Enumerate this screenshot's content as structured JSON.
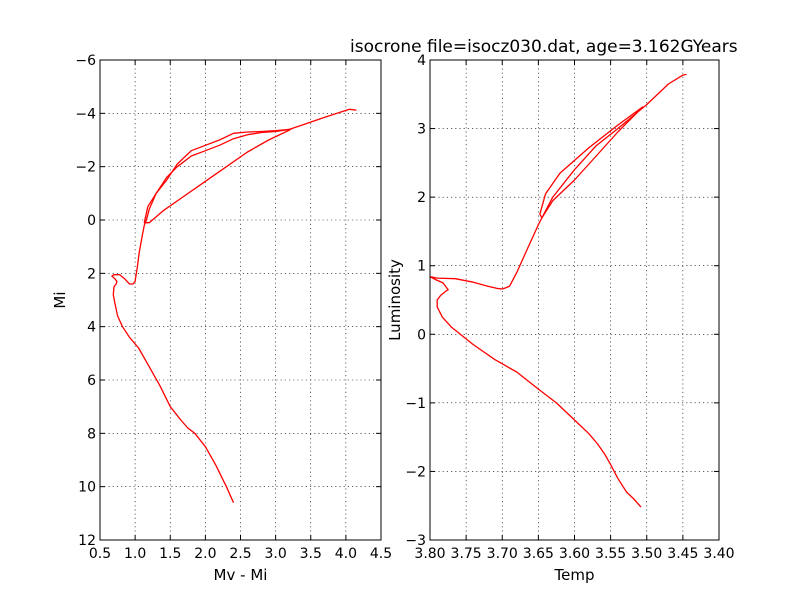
{
  "title": "isocrone file=isocz030.dat, age=3.162GYears",
  "colors": {
    "curve": "#ff0000"
  },
  "chart_data": [
    {
      "type": "line",
      "xlabel": "Mv - Mi",
      "ylabel": "Mi",
      "xlim": [
        0.5,
        4.5
      ],
      "ylim": [
        12,
        -6
      ],
      "y_inverted": true,
      "grid": true,
      "xticks": [
        0.5,
        1.0,
        1.5,
        2.0,
        2.5,
        3.0,
        3.5,
        4.0,
        4.5
      ],
      "xtick_labels": [
        "0.5",
        "1.0",
        "1.5",
        "2.0",
        "2.5",
        "3.0",
        "3.5",
        "4.0",
        "4.5"
      ],
      "yticks": [
        -6,
        -4,
        -2,
        0,
        2,
        4,
        6,
        8,
        10,
        12
      ],
      "ytick_labels": [
        "−6",
        "−4",
        "−2",
        "0",
        "2",
        "4",
        "6",
        "8",
        "10",
        "12"
      ],
      "series": [
        {
          "x": [
            2.4,
            2.3,
            2.15,
            2.0,
            1.85,
            1.75,
            1.65,
            1.5,
            1.35,
            1.2,
            1.05,
            0.92,
            0.82,
            0.75,
            0.71,
            0.69,
            0.7,
            0.73,
            0.74,
            0.71,
            0.67,
            0.7,
            0.78,
            0.85,
            0.92,
            0.97,
            1.0,
            1.03,
            1.06,
            1.1,
            1.13,
            1.16,
            1.2,
            1.3,
            1.45,
            1.6,
            1.8,
            2.0,
            2.2,
            2.4,
            2.6,
            2.8,
            3.0,
            3.2,
            3.7,
            4.05,
            4.15
          ],
          "y": [
            10.6,
            10.0,
            9.2,
            8.5,
            8.0,
            7.8,
            7.5,
            7.0,
            6.2,
            5.5,
            4.8,
            4.4,
            4.0,
            3.6,
            3.1,
            2.8,
            2.5,
            2.4,
            2.3,
            2.2,
            2.1,
            2.05,
            2.05,
            2.2,
            2.4,
            2.4,
            2.3,
            1.8,
            1.2,
            0.6,
            0.2,
            0.0,
            -0.4,
            -1.0,
            -1.6,
            -2.0,
            -2.4,
            -2.6,
            -2.8,
            -3.05,
            -3.2,
            -3.28,
            -3.32,
            -3.4,
            -3.85,
            -4.15,
            -4.12
          ]
        },
        {
          "x": [
            3.22,
            3.0,
            2.8,
            2.6,
            2.4,
            2.2,
            2.0,
            1.8,
            1.6,
            1.45,
            1.3,
            1.18,
            1.13,
            1.2,
            1.4,
            1.7,
            2.0,
            2.3,
            2.6,
            2.9,
            3.22
          ],
          "y": [
            -3.4,
            -3.35,
            -3.32,
            -3.3,
            -3.25,
            -3.0,
            -2.8,
            -2.6,
            -2.1,
            -1.5,
            -1.0,
            -0.5,
            0.1,
            0.1,
            -0.35,
            -0.9,
            -1.45,
            -2.0,
            -2.55,
            -3.0,
            -3.4
          ]
        }
      ]
    },
    {
      "type": "line",
      "xlabel": "Temp",
      "ylabel": "Luminosity",
      "xlim": [
        3.8,
        3.4
      ],
      "ylim": [
        -3,
        4
      ],
      "x_inverted": true,
      "grid": true,
      "xticks": [
        3.8,
        3.75,
        3.7,
        3.65,
        3.6,
        3.55,
        3.5,
        3.45,
        3.4
      ],
      "xtick_labels": [
        "3.80",
        "3.75",
        "3.70",
        "3.65",
        "3.60",
        "3.55",
        "3.50",
        "3.45",
        "3.40"
      ],
      "yticks": [
        -3,
        -2,
        -1,
        0,
        1,
        2,
        3,
        4
      ],
      "ytick_labels": [
        "−3",
        "−2",
        "−1",
        "0",
        "1",
        "2",
        "3",
        "4"
      ],
      "series": [
        {
          "x": [
            3.508,
            3.518,
            3.528,
            3.54,
            3.55,
            3.558,
            3.568,
            3.58,
            3.6,
            3.625,
            3.65,
            3.68,
            3.71,
            3.74,
            3.77,
            3.783,
            3.79,
            3.79,
            3.785,
            3.778,
            3.775,
            3.782,
            3.793,
            3.8,
            3.79,
            3.765,
            3.74,
            3.72,
            3.708,
            3.7,
            3.695,
            3.69,
            3.68,
            3.665,
            3.65,
            3.63,
            3.6,
            3.57,
            3.54,
            3.5,
            3.47,
            3.45,
            3.445
          ],
          "y": [
            -2.52,
            -2.4,
            -2.3,
            -2.1,
            -1.9,
            -1.75,
            -1.6,
            -1.45,
            -1.25,
            -1.0,
            -0.8,
            -0.55,
            -0.37,
            -0.15,
            0.1,
            0.25,
            0.4,
            0.5,
            0.57,
            0.63,
            0.65,
            0.75,
            0.8,
            0.84,
            0.82,
            0.81,
            0.76,
            0.7,
            0.67,
            0.66,
            0.68,
            0.7,
            0.9,
            1.25,
            1.6,
            2.0,
            2.4,
            2.75,
            3.0,
            3.35,
            3.65,
            3.78,
            3.79
          ]
        },
        {
          "x": [
            3.505,
            3.54,
            3.58,
            3.62,
            3.64,
            3.648,
            3.645,
            3.63,
            3.6,
            3.57,
            3.54,
            3.505
          ],
          "y": [
            3.32,
            3.05,
            2.72,
            2.35,
            2.05,
            1.75,
            1.7,
            1.95,
            2.25,
            2.6,
            2.95,
            3.32
          ]
        }
      ]
    }
  ]
}
